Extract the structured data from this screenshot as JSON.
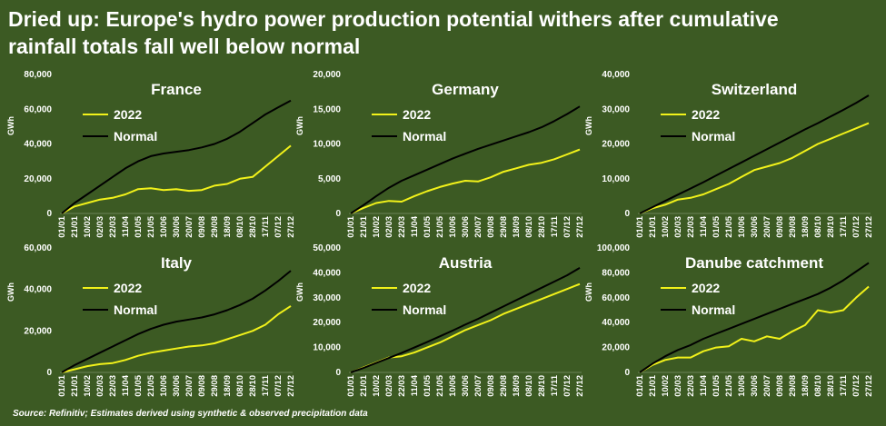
{
  "title_lines": [
    "Dried up: Europe's hydro power production potential withers after cumulative",
    "rainfall totals fall well below normal"
  ],
  "source": "Source: Refinitiv; Estimates derived using synthetic & observed precipitation data",
  "colors": {
    "background": "#3c5a23",
    "series_2022": "#f2f21a",
    "series_normal": "#000000",
    "text": "#ffffff"
  },
  "chart_data": [
    {
      "type": "line",
      "title": "France",
      "ylabel": "GWh",
      "ylim": [
        0,
        80000
      ],
      "yticks": [
        "0",
        "20,000",
        "40,000",
        "60,000",
        "80,000"
      ],
      "x": [
        "01/01",
        "21/01",
        "10/02",
        "02/03",
        "22/03",
        "11/04",
        "01/05",
        "21/05",
        "10/06",
        "30/06",
        "20/07",
        "09/08",
        "29/08",
        "18/09",
        "08/10",
        "28/10",
        "17/11",
        "07/12",
        "27/12"
      ],
      "legend": [
        "2022",
        "Normal"
      ],
      "legend_position": "top-left",
      "grid": false,
      "series": [
        {
          "name": "2022",
          "color": "#f2f21a",
          "values": [
            0,
            4000,
            6000,
            8000,
            9000,
            11000,
            14000,
            14500,
            13500,
            14000,
            13000,
            13500,
            16000,
            17000,
            20000,
            21000,
            27000,
            33000,
            39000
          ]
        },
        {
          "name": "Normal",
          "color": "#000000",
          "values": [
            0,
            6000,
            11000,
            16000,
            21000,
            26000,
            30000,
            33000,
            34500,
            35500,
            36500,
            38000,
            40000,
            43000,
            47000,
            52000,
            57000,
            61000,
            65000
          ]
        }
      ]
    },
    {
      "type": "line",
      "title": "Germany",
      "ylabel": "GWh",
      "ylim": [
        0,
        20000
      ],
      "yticks": [
        "0",
        "5,000",
        "10,000",
        "15,000",
        "20,000"
      ],
      "x": [
        "01/01",
        "21/01",
        "10/02",
        "02/03",
        "22/03",
        "11/04",
        "01/05",
        "21/05",
        "10/06",
        "30/06",
        "20/07",
        "09/08",
        "29/08",
        "18/09",
        "08/10",
        "28/10",
        "17/11",
        "07/12",
        "27/12"
      ],
      "legend": [
        "2022",
        "Normal"
      ],
      "legend_position": "top-left",
      "grid": false,
      "series": [
        {
          "name": "2022",
          "color": "#f2f21a",
          "values": [
            0,
            800,
            1500,
            1800,
            1700,
            2500,
            3200,
            3800,
            4300,
            4700,
            4600,
            5200,
            6000,
            6500,
            7000,
            7300,
            7800,
            8500,
            9200
          ]
        },
        {
          "name": "Normal",
          "color": "#000000",
          "values": [
            0,
            1200,
            2500,
            3700,
            4700,
            5500,
            6300,
            7100,
            7900,
            8600,
            9300,
            9900,
            10500,
            11100,
            11700,
            12400,
            13300,
            14300,
            15400
          ]
        }
      ]
    },
    {
      "type": "line",
      "title": "Switzerland",
      "ylabel": "GWh",
      "ylim": [
        0,
        40000
      ],
      "yticks": [
        "0",
        "10,000",
        "20,000",
        "30,000",
        "40,000"
      ],
      "x": [
        "01/01",
        "21/01",
        "10/02",
        "02/03",
        "22/03",
        "11/04",
        "01/05",
        "21/05",
        "10/06",
        "30/06",
        "20/07",
        "09/08",
        "29/08",
        "18/09",
        "08/10",
        "28/10",
        "17/11",
        "07/12",
        "27/12"
      ],
      "legend": [
        "2022",
        "Normal"
      ],
      "legend_position": "top-left",
      "grid": false,
      "series": [
        {
          "name": "2022",
          "color": "#f2f21a",
          "values": [
            0,
            1500,
            2500,
            4000,
            4500,
            5500,
            7000,
            8500,
            10500,
            12500,
            13500,
            14500,
            16000,
            18000,
            20000,
            21500,
            23000,
            24500,
            26000
          ]
        },
        {
          "name": "Normal",
          "color": "#000000",
          "values": [
            0,
            1800,
            3600,
            5400,
            7200,
            9000,
            10900,
            12800,
            14700,
            16600,
            18500,
            20400,
            22300,
            24200,
            26000,
            27900,
            29800,
            31800,
            34000
          ]
        }
      ]
    },
    {
      "type": "line",
      "title": "Italy",
      "ylabel": "GWh",
      "ylim": [
        0,
        60000
      ],
      "yticks": [
        "0",
        "20,000",
        "40,000",
        "60,000"
      ],
      "x": [
        "01/01",
        "21/01",
        "10/02",
        "02/03",
        "22/03",
        "11/04",
        "01/05",
        "21/05",
        "10/06",
        "30/06",
        "20/07",
        "09/08",
        "29/08",
        "18/09",
        "08/10",
        "28/10",
        "17/11",
        "07/12",
        "27/12"
      ],
      "legend": [
        "2022",
        "Normal"
      ],
      "legend_position": "top-left",
      "grid": false,
      "series": [
        {
          "name": "2022",
          "color": "#f2f21a",
          "values": [
            0,
            1500,
            3000,
            4000,
            4500,
            6000,
            8000,
            9500,
            10500,
            11500,
            12500,
            13000,
            14000,
            16000,
            18000,
            20000,
            23000,
            28000,
            32000
          ]
        },
        {
          "name": "Normal",
          "color": "#000000",
          "values": [
            0,
            3500,
            6500,
            9500,
            12500,
            15500,
            18500,
            21000,
            23000,
            24500,
            25500,
            26500,
            28000,
            30000,
            32500,
            35500,
            39500,
            44000,
            49000
          ]
        }
      ]
    },
    {
      "type": "line",
      "title": "Austria",
      "ylabel": "GWh",
      "ylim": [
        0,
        50000
      ],
      "yticks": [
        "0",
        "10,000",
        "20,000",
        "30,000",
        "40,000",
        "50,000"
      ],
      "x": [
        "01/01",
        "21/01",
        "10/02",
        "02/03",
        "22/03",
        "11/04",
        "01/05",
        "21/05",
        "10/06",
        "30/06",
        "20/07",
        "09/08",
        "29/08",
        "18/09",
        "08/10",
        "28/10",
        "17/11",
        "07/12",
        "27/12"
      ],
      "legend": [
        "2022",
        "Normal"
      ],
      "legend_position": "top-left",
      "grid": false,
      "series": [
        {
          "name": "2022",
          "color": "#f2f21a",
          "values": [
            0,
            2000,
            4000,
            6000,
            6500,
            8000,
            10000,
            12000,
            14500,
            17000,
            19000,
            21000,
            23500,
            25500,
            27500,
            29500,
            31500,
            33500,
            35500
          ]
        },
        {
          "name": "Normal",
          "color": "#000000",
          "values": [
            0,
            1800,
            3800,
            5800,
            7800,
            10000,
            12200,
            14500,
            16800,
            19200,
            21500,
            24000,
            26500,
            29000,
            31500,
            34000,
            36500,
            39000,
            42000
          ]
        }
      ]
    },
    {
      "type": "line",
      "title": "Danube catchment",
      "ylabel": "GWh",
      "ylim": [
        0,
        100000
      ],
      "yticks": [
        "0",
        "20,000",
        "40,000",
        "60,000",
        "80,000",
        "100,000"
      ],
      "x": [
        "01/01",
        "21/01",
        "10/02",
        "02/03",
        "22/03",
        "11/04",
        "01/05",
        "21/05",
        "10/06",
        "30/06",
        "20/07",
        "09/08",
        "29/08",
        "18/09",
        "08/10",
        "28/10",
        "17/11",
        "07/12",
        "27/12"
      ],
      "legend": [
        "2022",
        "Normal"
      ],
      "legend_position": "top-left",
      "grid": false,
      "series": [
        {
          "name": "2022",
          "color": "#f2f21a",
          "values": [
            0,
            6000,
            10000,
            12000,
            12000,
            17000,
            20000,
            21000,
            27000,
            25000,
            29000,
            27000,
            33000,
            38000,
            50000,
            48000,
            50000,
            60000,
            69000
          ]
        },
        {
          "name": "Normal",
          "color": "#000000",
          "values": [
            0,
            7000,
            13000,
            18000,
            22000,
            27000,
            31000,
            35000,
            39000,
            43000,
            47000,
            51000,
            55000,
            59000,
            63000,
            68000,
            74000,
            81000,
            88000
          ]
        }
      ]
    }
  ]
}
